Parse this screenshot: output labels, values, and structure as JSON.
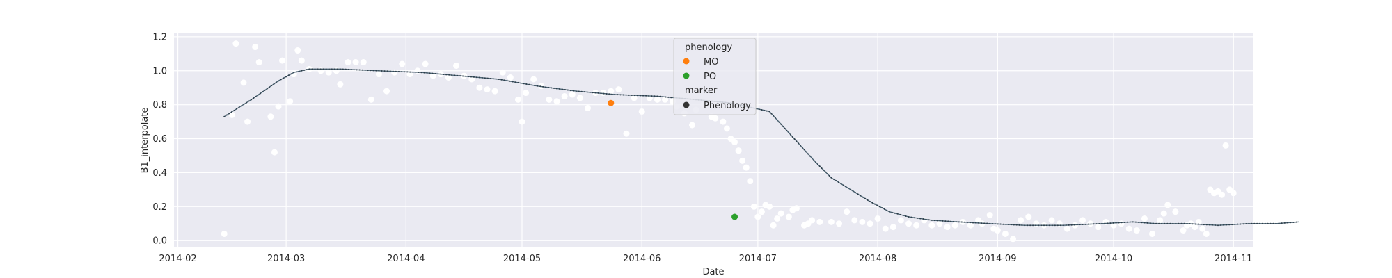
{
  "chart_data": {
    "type": "scatter",
    "xlabel": "Date",
    "ylabel": "B1_interpolate",
    "x_ticks": [
      "2014-02",
      "2014-03",
      "2014-04",
      "2014-05",
      "2014-06",
      "2014-07",
      "2014-08",
      "2014-09",
      "2014-10",
      "2014-11"
    ],
    "y_ticks": [
      "0.0",
      "0.2",
      "0.4",
      "0.6",
      "0.8",
      "1.0",
      "1.2"
    ],
    "xlim": [
      "2014-01-31",
      "2014-11-06"
    ],
    "ylim": [
      -0.04,
      1.22
    ],
    "grid": true,
    "legend_position": "top-center",
    "legend": {
      "phenology_title": "phenology",
      "marker_title": "marker",
      "entries": [
        {
          "label": "MO",
          "color": "#ff7f0e"
        },
        {
          "label": "PO",
          "color": "#2ca02c"
        }
      ],
      "marker_entry": {
        "label": "Phenology",
        "color": "#333333"
      }
    },
    "colors": {
      "background": "#eaeaf2",
      "grid": "#ffffff",
      "scatter": "#ffffff",
      "curve": "#4a6373",
      "curve_dots": "#2e3e4a"
    },
    "series": [
      {
        "kind": "scatter",
        "points": [
          [
            "2014-02-13",
            0.04
          ],
          [
            "2014-02-15",
            0.74
          ],
          [
            "2014-02-16",
            1.16
          ],
          [
            "2014-02-18",
            0.93
          ],
          [
            "2014-02-19",
            0.7
          ],
          [
            "2014-02-21",
            1.14
          ],
          [
            "2014-02-22",
            1.05
          ],
          [
            "2014-02-25",
            0.73
          ],
          [
            "2014-02-26",
            0.52
          ],
          [
            "2014-02-27",
            0.79
          ],
          [
            "2014-02-28",
            1.06
          ],
          [
            "2014-03-02",
            0.82
          ],
          [
            "2014-03-03",
            0.98
          ],
          [
            "2014-03-04",
            1.12
          ],
          [
            "2014-03-05",
            1.06
          ],
          [
            "2014-03-07",
            1.01
          ],
          [
            "2014-03-10",
            1.0
          ],
          [
            "2014-03-12",
            0.99
          ],
          [
            "2014-03-14",
            1.0
          ],
          [
            "2014-03-15",
            0.92
          ],
          [
            "2014-03-17",
            1.05
          ],
          [
            "2014-03-19",
            1.05
          ],
          [
            "2014-03-21",
            1.05
          ],
          [
            "2014-03-23",
            0.83
          ],
          [
            "2014-03-25",
            0.98
          ],
          [
            "2014-03-27",
            0.88
          ],
          [
            "2014-03-29",
            0.99
          ],
          [
            "2014-03-31",
            1.04
          ],
          [
            "2014-04-02",
            0.98
          ],
          [
            "2014-04-04",
            1.0
          ],
          [
            "2014-04-06",
            1.04
          ],
          [
            "2014-04-08",
            0.97
          ],
          [
            "2014-04-10",
            0.98
          ],
          [
            "2014-04-12",
            0.96
          ],
          [
            "2014-04-14",
            1.03
          ],
          [
            "2014-04-16",
            0.97
          ],
          [
            "2014-04-18",
            0.95
          ],
          [
            "2014-04-20",
            0.9
          ],
          [
            "2014-04-22",
            0.89
          ],
          [
            "2014-04-24",
            0.88
          ],
          [
            "2014-04-26",
            0.99
          ],
          [
            "2014-04-28",
            0.96
          ],
          [
            "2014-04-30",
            0.83
          ],
          [
            "2014-05-01",
            0.7
          ],
          [
            "2014-05-02",
            0.87
          ],
          [
            "2014-05-04",
            0.95
          ],
          [
            "2014-05-06",
            0.91
          ],
          [
            "2014-05-08",
            0.83
          ],
          [
            "2014-05-10",
            0.82
          ],
          [
            "2014-05-12",
            0.85
          ],
          [
            "2014-05-14",
            0.86
          ],
          [
            "2014-05-16",
            0.84
          ],
          [
            "2014-05-18",
            0.78
          ],
          [
            "2014-05-20",
            0.87
          ],
          [
            "2014-05-22",
            0.87
          ],
          [
            "2014-05-24",
            0.88
          ],
          [
            "2014-05-26",
            0.89
          ],
          [
            "2014-05-28",
            0.63
          ],
          [
            "2014-05-30",
            0.84
          ],
          [
            "2014-06-01",
            0.76
          ],
          [
            "2014-06-03",
            0.84
          ],
          [
            "2014-06-05",
            0.83
          ],
          [
            "2014-06-07",
            0.83
          ],
          [
            "2014-06-09",
            0.82
          ],
          [
            "2014-06-10",
            0.79
          ],
          [
            "2014-06-12",
            0.75
          ],
          [
            "2014-06-14",
            0.68
          ],
          [
            "2014-06-15",
            0.77
          ],
          [
            "2014-06-17",
            0.8
          ],
          [
            "2014-06-19",
            0.73
          ],
          [
            "2014-06-20",
            0.72
          ],
          [
            "2014-06-22",
            0.7
          ],
          [
            "2014-06-23",
            0.66
          ],
          [
            "2014-06-24",
            0.6
          ],
          [
            "2014-06-25",
            0.58
          ],
          [
            "2014-06-26",
            0.53
          ],
          [
            "2014-06-27",
            0.47
          ],
          [
            "2014-06-28",
            0.43
          ],
          [
            "2014-06-29",
            0.35
          ],
          [
            "2014-06-30",
            0.2
          ],
          [
            "2014-07-01",
            0.14
          ],
          [
            "2014-07-02",
            0.17
          ],
          [
            "2014-07-03",
            0.21
          ],
          [
            "2014-07-04",
            0.2
          ],
          [
            "2014-07-05",
            0.09
          ],
          [
            "2014-07-06",
            0.13
          ],
          [
            "2014-07-07",
            0.16
          ],
          [
            "2014-07-09",
            0.14
          ],
          [
            "2014-07-10",
            0.18
          ],
          [
            "2014-07-11",
            0.19
          ],
          [
            "2014-07-13",
            0.09
          ],
          [
            "2014-07-14",
            0.1
          ],
          [
            "2014-07-15",
            0.12
          ],
          [
            "2014-07-17",
            0.11
          ],
          [
            "2014-07-20",
            0.11
          ],
          [
            "2014-07-22",
            0.1
          ],
          [
            "2014-07-24",
            0.17
          ],
          [
            "2014-07-26",
            0.12
          ],
          [
            "2014-07-28",
            0.11
          ],
          [
            "2014-07-30",
            0.1
          ],
          [
            "2014-08-01",
            0.13
          ],
          [
            "2014-08-03",
            0.07
          ],
          [
            "2014-08-05",
            0.08
          ],
          [
            "2014-08-07",
            0.12
          ],
          [
            "2014-08-09",
            0.1
          ],
          [
            "2014-08-11",
            0.09
          ],
          [
            "2014-08-13",
            0.12
          ],
          [
            "2014-08-15",
            0.09
          ],
          [
            "2014-08-17",
            0.1
          ],
          [
            "2014-08-19",
            0.08
          ],
          [
            "2014-08-21",
            0.09
          ],
          [
            "2014-08-23",
            0.11
          ],
          [
            "2014-08-25",
            0.09
          ],
          [
            "2014-08-27",
            0.12
          ],
          [
            "2014-08-28",
            0.1
          ],
          [
            "2014-08-30",
            0.15
          ],
          [
            "2014-08-31",
            0.07
          ],
          [
            "2014-09-01",
            0.06
          ],
          [
            "2014-09-03",
            0.04
          ],
          [
            "2014-09-05",
            0.01
          ],
          [
            "2014-09-07",
            0.12
          ],
          [
            "2014-09-09",
            0.14
          ],
          [
            "2014-09-11",
            0.1
          ],
          [
            "2014-09-13",
            0.09
          ],
          [
            "2014-09-15",
            0.12
          ],
          [
            "2014-09-17",
            0.1
          ],
          [
            "2014-09-19",
            0.07
          ],
          [
            "2014-09-21",
            0.09
          ],
          [
            "2014-09-23",
            0.12
          ],
          [
            "2014-09-25",
            0.1
          ],
          [
            "2014-09-27",
            0.08
          ],
          [
            "2014-09-29",
            0.11
          ],
          [
            "2014-10-01",
            0.09
          ],
          [
            "2014-10-03",
            0.1
          ],
          [
            "2014-10-05",
            0.07
          ],
          [
            "2014-10-07",
            0.06
          ],
          [
            "2014-10-09",
            0.13
          ],
          [
            "2014-10-11",
            0.04
          ],
          [
            "2014-10-13",
            0.12
          ],
          [
            "2014-10-14",
            0.16
          ],
          [
            "2014-10-15",
            0.21
          ],
          [
            "2014-10-17",
            0.17
          ],
          [
            "2014-10-19",
            0.06
          ],
          [
            "2014-10-20",
            0.09
          ],
          [
            "2014-10-21",
            0.1
          ],
          [
            "2014-10-22",
            0.08
          ],
          [
            "2014-10-23",
            0.11
          ],
          [
            "2014-10-24",
            0.07
          ],
          [
            "2014-10-25",
            0.04
          ],
          [
            "2014-10-26",
            0.3
          ],
          [
            "2014-10-27",
            0.28
          ],
          [
            "2014-10-28",
            0.29
          ],
          [
            "2014-10-29",
            0.27
          ],
          [
            "2014-10-30",
            0.56
          ],
          [
            "2014-10-31",
            0.3
          ],
          [
            "2014-11-01",
            0.28
          ]
        ]
      }
    ],
    "curve": [
      [
        "2014-02-13",
        0.73
      ],
      [
        "2014-02-20",
        0.83
      ],
      [
        "2014-02-27",
        0.94
      ],
      [
        "2014-03-03",
        0.99
      ],
      [
        "2014-03-07",
        1.01
      ],
      [
        "2014-03-15",
        1.01
      ],
      [
        "2014-03-25",
        1.0
      ],
      [
        "2014-04-05",
        0.99
      ],
      [
        "2014-04-15",
        0.97
      ],
      [
        "2014-04-25",
        0.95
      ],
      [
        "2014-05-05",
        0.91
      ],
      [
        "2014-05-15",
        0.88
      ],
      [
        "2014-05-25",
        0.86
      ],
      [
        "2014-06-05",
        0.85
      ],
      [
        "2014-06-15",
        0.83
      ],
      [
        "2014-06-24",
        0.81
      ],
      [
        "2014-06-30",
        0.78
      ],
      [
        "2014-07-04",
        0.76
      ],
      [
        "2014-07-08",
        0.66
      ],
      [
        "2014-07-12",
        0.56
      ],
      [
        "2014-07-16",
        0.46
      ],
      [
        "2014-07-20",
        0.37
      ],
      [
        "2014-07-25",
        0.3
      ],
      [
        "2014-07-30",
        0.23
      ],
      [
        "2014-08-04",
        0.17
      ],
      [
        "2014-08-09",
        0.14
      ],
      [
        "2014-08-15",
        0.12
      ],
      [
        "2014-08-22",
        0.11
      ],
      [
        "2014-08-30",
        0.1
      ],
      [
        "2014-09-08",
        0.09
      ],
      [
        "2014-09-18",
        0.09
      ],
      [
        "2014-09-28",
        0.1
      ],
      [
        "2014-10-06",
        0.11
      ],
      [
        "2014-10-12",
        0.1
      ],
      [
        "2014-10-20",
        0.1
      ],
      [
        "2014-10-28",
        0.09
      ],
      [
        "2014-11-05",
        0.1
      ],
      [
        "2014-11-12",
        0.1
      ],
      [
        "2014-11-18",
        0.11
      ]
    ],
    "phenology_points": [
      {
        "label": "MO",
        "x": "2014-05-24",
        "y": 0.81,
        "color": "#ff7f0e"
      },
      {
        "label": "PO",
        "x": "2014-06-25",
        "y": 0.14,
        "color": "#2ca02c"
      }
    ]
  }
}
